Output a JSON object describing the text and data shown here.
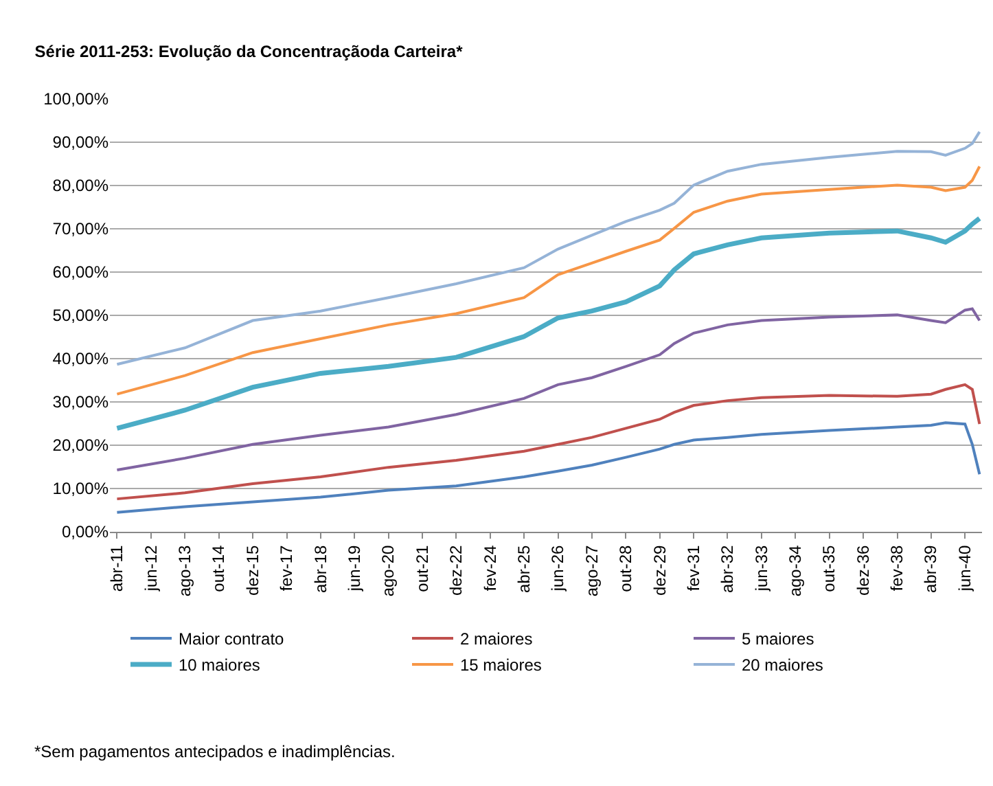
{
  "chart_data": {
    "type": "line",
    "title": "Série 2011-253: Evolução da Concentraçãoda Carteira*",
    "x": [
      "2011-04",
      "2013-08",
      "2015-12",
      "2018-04",
      "2020-08",
      "2022-12",
      "2025-04",
      "2026-06",
      "2027-08",
      "2028-10",
      "2029-12",
      "2030-06",
      "2031-02",
      "2032-04",
      "2033-06",
      "2035-10",
      "2038-02",
      "2039-04",
      "2039-10",
      "2040-06",
      "2040-09",
      "2040-12"
    ],
    "series": [
      {
        "name": "Maior contrato",
        "color": "#4f81bd",
        "values": [
          4.5,
          5.8,
          6.9,
          8.0,
          9.6,
          10.6,
          12.7,
          14.0,
          15.4,
          17.2,
          19.1,
          20.2,
          21.2,
          21.8,
          22.5,
          23.4,
          24.2,
          24.6,
          25.2,
          24.9,
          20.2,
          13.3
        ]
      },
      {
        "name": "2 maiores",
        "color": "#c0504d",
        "values": [
          7.6,
          9.0,
          11.1,
          12.7,
          14.9,
          16.5,
          18.6,
          20.2,
          21.8,
          23.9,
          26.0,
          27.6,
          29.2,
          30.3,
          31.0,
          31.5,
          31.3,
          31.8,
          32.9,
          34.0,
          32.9,
          24.9
        ]
      },
      {
        "name": "5 maiores",
        "color": "#8064a2",
        "values": [
          14.3,
          17.0,
          20.2,
          22.3,
          24.2,
          27.1,
          30.8,
          34.0,
          35.6,
          38.2,
          40.9,
          43.5,
          45.9,
          47.8,
          48.8,
          49.6,
          50.1,
          48.8,
          48.3,
          51.2,
          51.5,
          48.8
        ]
      },
      {
        "name": "10 maiores",
        "color": "#4bacc6",
        "values": [
          23.9,
          28.1,
          33.4,
          36.6,
          38.2,
          40.3,
          45.1,
          49.4,
          51.0,
          53.1,
          56.8,
          60.5,
          64.2,
          66.3,
          67.9,
          69.0,
          69.5,
          67.9,
          66.9,
          69.5,
          71.1,
          72.4
        ]
      },
      {
        "name": "15 maiores",
        "color": "#f79646",
        "values": [
          31.8,
          36.1,
          41.4,
          44.6,
          47.8,
          50.4,
          54.1,
          59.4,
          62.1,
          64.8,
          67.4,
          70.1,
          73.8,
          76.4,
          78.0,
          79.1,
          80.1,
          79.6,
          78.8,
          79.6,
          81.2,
          84.4
        ]
      },
      {
        "name": "20 maiores",
        "color": "#95b3d7",
        "values": [
          38.7,
          42.5,
          48.8,
          51.0,
          54.1,
          57.3,
          61.0,
          65.3,
          68.5,
          71.7,
          74.3,
          75.9,
          80.1,
          83.3,
          84.9,
          86.5,
          87.9,
          87.8,
          87.0,
          88.6,
          89.7,
          92.4
        ]
      }
    ],
    "xlim": [
      "2011-01",
      "2041-01"
    ],
    "xticks": [
      {
        "value": "2011-04",
        "label": "abr-11"
      },
      {
        "value": "2012-06",
        "label": "jun-12"
      },
      {
        "value": "2013-08",
        "label": "ago-13"
      },
      {
        "value": "2014-10",
        "label": "out-14"
      },
      {
        "value": "2015-12",
        "label": "dez-15"
      },
      {
        "value": "2017-02",
        "label": "fev-17"
      },
      {
        "value": "2018-04",
        "label": "abr-18"
      },
      {
        "value": "2019-06",
        "label": "jun-19"
      },
      {
        "value": "2020-08",
        "label": "ago-20"
      },
      {
        "value": "2021-10",
        "label": "out-21"
      },
      {
        "value": "2022-12",
        "label": "dez-22"
      },
      {
        "value": "2024-02",
        "label": "fev-24"
      },
      {
        "value": "2025-04",
        "label": "abr-25"
      },
      {
        "value": "2026-06",
        "label": "jun-26"
      },
      {
        "value": "2027-08",
        "label": "ago-27"
      },
      {
        "value": "2028-10",
        "label": "out-28"
      },
      {
        "value": "2029-12",
        "label": "dez-29"
      },
      {
        "value": "2031-02",
        "label": "fev-31"
      },
      {
        "value": "2032-04",
        "label": "abr-32"
      },
      {
        "value": "2033-06",
        "label": "jun-33"
      },
      {
        "value": "2034-08",
        "label": "ago-34"
      },
      {
        "value": "2035-10",
        "label": "out-35"
      },
      {
        "value": "2036-12",
        "label": "dez-36"
      },
      {
        "value": "2038-02",
        "label": "fev-38"
      },
      {
        "value": "2039-04",
        "label": "abr-39"
      },
      {
        "value": "2040-06",
        "label": "jun-40"
      }
    ],
    "ylim": [
      0,
      100
    ],
    "yticks": [
      {
        "value": 0,
        "label": "0,00%"
      },
      {
        "value": 10,
        "label": "10,00%"
      },
      {
        "value": 20,
        "label": "20,00%"
      },
      {
        "value": 30,
        "label": "30,00%"
      },
      {
        "value": 40,
        "label": "40,00%"
      },
      {
        "value": 50,
        "label": "50,00%"
      },
      {
        "value": 60,
        "label": "60,00%"
      },
      {
        "value": 70,
        "label": "70,00%"
      },
      {
        "value": 80,
        "label": "80,00%"
      },
      {
        "value": 90,
        "label": "90,00%"
      },
      {
        "value": 100,
        "label": "100,00%"
      }
    ],
    "grid": "y",
    "legend": "bottom",
    "annotations": [
      "*Sem pagamentos antecipados e inadimplências."
    ]
  }
}
